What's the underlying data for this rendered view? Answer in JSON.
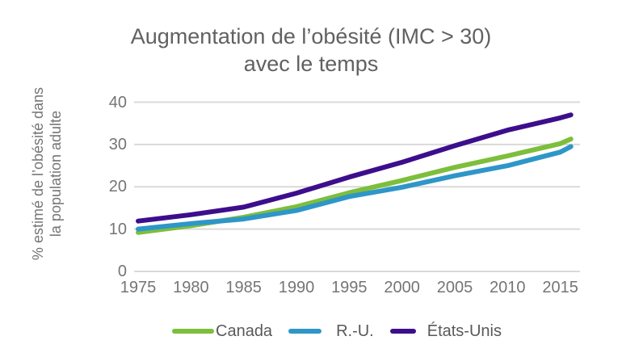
{
  "page": {
    "background": "#ffffff"
  },
  "chart_data": {
    "type": "line",
    "title": "Augmentation de l’obésité (IMC > 30) avec le temps",
    "title_lines": [
      "Augmentation de l’obésité (IMC > 30)",
      "avec le temps"
    ],
    "ylabel": "% estimé de l’obésité dans la population adulte",
    "ylabel_lines": [
      "% estimé de l’obésité dans",
      "la population adulte"
    ],
    "xlabel": "",
    "x": [
      1975,
      1980,
      1985,
      1990,
      1995,
      2000,
      2005,
      2010,
      2015,
      2016
    ],
    "xticks": [
      1975,
      1980,
      1985,
      1990,
      1995,
      2000,
      2005,
      2010,
      2015
    ],
    "yticks": [
      0,
      10,
      20,
      30,
      40
    ],
    "xlim": [
      1975,
      2016
    ],
    "ylim": [
      0,
      40
    ],
    "grid": "horizontal",
    "grid_color": "#d9d9d9",
    "title_color": "#616161",
    "axis_text_color": "#757575",
    "legend_position": "bottom",
    "series": [
      {
        "name": "Canada",
        "color": "#7DBE3C",
        "values": [
          9.2,
          10.8,
          12.8,
          15.3,
          18.6,
          21.5,
          24.6,
          27.3,
          30.2,
          31.3
        ]
      },
      {
        "name": "R.-U.",
        "color": "#2E96C8",
        "values": [
          10.0,
          11.3,
          12.4,
          14.4,
          17.7,
          19.9,
          22.6,
          25.0,
          28.2,
          29.5
        ]
      },
      {
        "name": "États-Unis",
        "color": "#3D0E8C",
        "values": [
          11.9,
          13.4,
          15.2,
          18.5,
          22.3,
          25.8,
          29.7,
          33.4,
          36.3,
          37.0
        ]
      }
    ]
  }
}
